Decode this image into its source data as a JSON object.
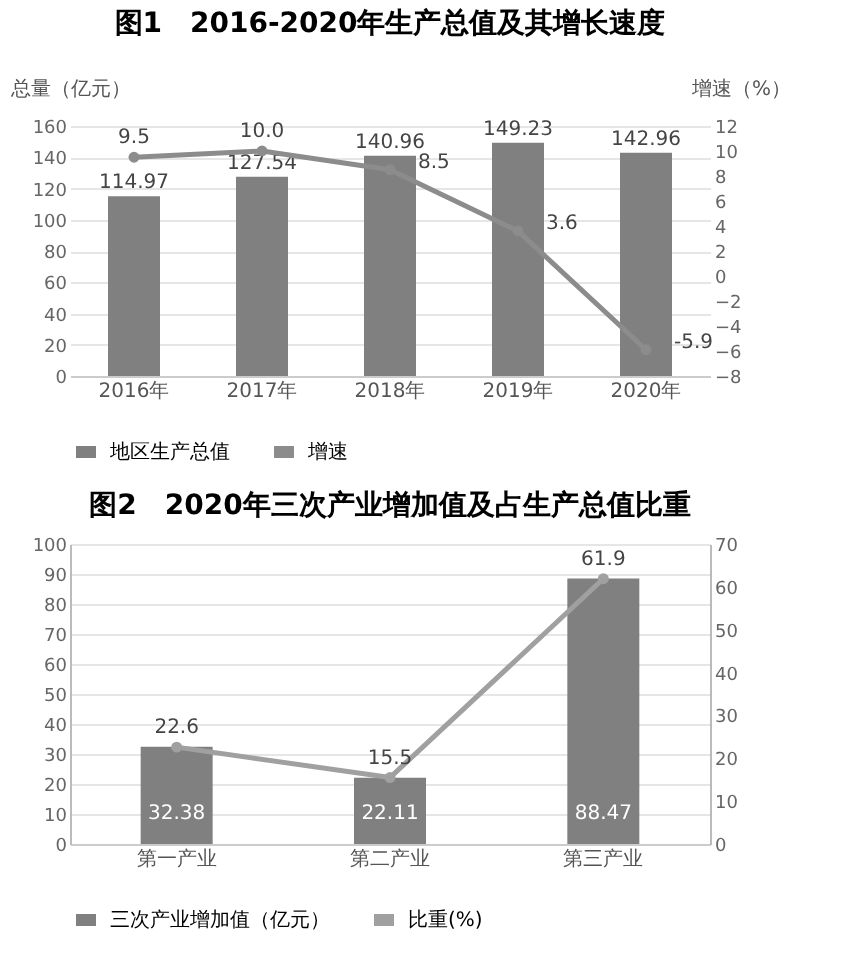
{
  "chart_data": [
    {
      "type": "bar",
      "title": "图1　2016-2020年生产总值及其增长速度",
      "ylabel": "总量（亿元）",
      "y2label": "增速（%）",
      "categories": [
        "2016年",
        "2017年",
        "2018年",
        "2019年",
        "2020年"
      ],
      "series": [
        {
          "name": "地区生产总值",
          "color": "#808080",
          "values": [
            114.97,
            127.54,
            140.96,
            149.23,
            142.96
          ],
          "value_labels": [
            "114.97",
            "127.54",
            "140.96",
            "149.23",
            "142.96"
          ]
        },
        {
          "name": "增速",
          "type": "line",
          "axis": "y2",
          "color": "#8c8c8c",
          "values": [
            9.5,
            10.0,
            8.5,
            3.6,
            -5.9
          ],
          "value_labels": [
            "9.5",
            "10.0",
            "8.5",
            "3.6",
            "-5.9"
          ]
        }
      ],
      "ylim": [
        0,
        160
      ],
      "yticks": [
        0,
        20,
        40,
        60,
        80,
        100,
        120,
        140,
        160
      ],
      "y2lim": [
        -8,
        12
      ],
      "y2ticks": [
        -8,
        -6,
        -4,
        -2,
        0,
        2,
        4,
        6,
        8,
        10,
        12
      ],
      "grid": "y",
      "legend": "bottom",
      "marker": "circle"
    },
    {
      "type": "bar",
      "title": "图2　2020年三次产业增加值及占生产总值比重",
      "categories": [
        "第一产业",
        "第二产业",
        "第三产业"
      ],
      "series": [
        {
          "name": "三次产业增加值（亿元）",
          "color": "#808080",
          "values": [
            32.38,
            22.11,
            88.47
          ],
          "value_labels": [
            "32.38",
            "22.11",
            "88.47"
          ]
        },
        {
          "name": "比重(%)",
          "type": "line",
          "axis": "y2",
          "color": "#a0a0a0",
          "values": [
            22.6,
            15.5,
            61.9
          ],
          "value_labels": [
            "22.6",
            "15.5",
            "61.9"
          ]
        }
      ],
      "ylim": [
        0,
        100
      ],
      "yticks": [
        0,
        10,
        20,
        30,
        40,
        50,
        60,
        70,
        80,
        90,
        100
      ],
      "y2lim": [
        0,
        70
      ],
      "y2ticks": [
        0,
        10,
        20,
        30,
        40,
        50,
        60,
        70
      ],
      "grid": "y",
      "legend": "bottom",
      "marker": "circle"
    }
  ]
}
